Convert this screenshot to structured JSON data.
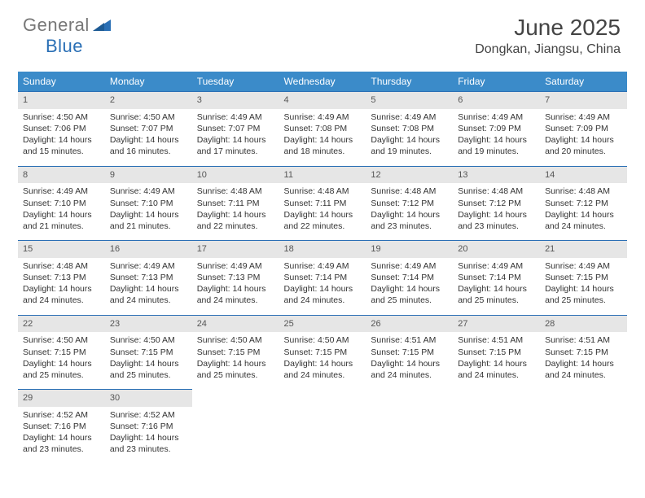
{
  "logo": {
    "word1": "General",
    "word2": "Blue"
  },
  "title": "June 2025",
  "location": "Dongkan, Jiangsu, China",
  "colors": {
    "header_bg": "#3b8bc9",
    "header_text": "#ffffff",
    "daynum_bg": "#e6e6e6",
    "row_border": "#2a6fb5",
    "body_text": "#333333",
    "title_text": "#444444",
    "logo_gray": "#777777",
    "logo_blue": "#2a6fb5"
  },
  "weekdays": [
    "Sunday",
    "Monday",
    "Tuesday",
    "Wednesday",
    "Thursday",
    "Friday",
    "Saturday"
  ],
  "weeks": [
    [
      {
        "n": "1",
        "sr": "4:50 AM",
        "ss": "7:06 PM",
        "dl": "14 hours and 15 minutes."
      },
      {
        "n": "2",
        "sr": "4:50 AM",
        "ss": "7:07 PM",
        "dl": "14 hours and 16 minutes."
      },
      {
        "n": "3",
        "sr": "4:49 AM",
        "ss": "7:07 PM",
        "dl": "14 hours and 17 minutes."
      },
      {
        "n": "4",
        "sr": "4:49 AM",
        "ss": "7:08 PM",
        "dl": "14 hours and 18 minutes."
      },
      {
        "n": "5",
        "sr": "4:49 AM",
        "ss": "7:08 PM",
        "dl": "14 hours and 19 minutes."
      },
      {
        "n": "6",
        "sr": "4:49 AM",
        "ss": "7:09 PM",
        "dl": "14 hours and 19 minutes."
      },
      {
        "n": "7",
        "sr": "4:49 AM",
        "ss": "7:09 PM",
        "dl": "14 hours and 20 minutes."
      }
    ],
    [
      {
        "n": "8",
        "sr": "4:49 AM",
        "ss": "7:10 PM",
        "dl": "14 hours and 21 minutes."
      },
      {
        "n": "9",
        "sr": "4:49 AM",
        "ss": "7:10 PM",
        "dl": "14 hours and 21 minutes."
      },
      {
        "n": "10",
        "sr": "4:48 AM",
        "ss": "7:11 PM",
        "dl": "14 hours and 22 minutes."
      },
      {
        "n": "11",
        "sr": "4:48 AM",
        "ss": "7:11 PM",
        "dl": "14 hours and 22 minutes."
      },
      {
        "n": "12",
        "sr": "4:48 AM",
        "ss": "7:12 PM",
        "dl": "14 hours and 23 minutes."
      },
      {
        "n": "13",
        "sr": "4:48 AM",
        "ss": "7:12 PM",
        "dl": "14 hours and 23 minutes."
      },
      {
        "n": "14",
        "sr": "4:48 AM",
        "ss": "7:12 PM",
        "dl": "14 hours and 24 minutes."
      }
    ],
    [
      {
        "n": "15",
        "sr": "4:48 AM",
        "ss": "7:13 PM",
        "dl": "14 hours and 24 minutes."
      },
      {
        "n": "16",
        "sr": "4:49 AM",
        "ss": "7:13 PM",
        "dl": "14 hours and 24 minutes."
      },
      {
        "n": "17",
        "sr": "4:49 AM",
        "ss": "7:13 PM",
        "dl": "14 hours and 24 minutes."
      },
      {
        "n": "18",
        "sr": "4:49 AM",
        "ss": "7:14 PM",
        "dl": "14 hours and 24 minutes."
      },
      {
        "n": "19",
        "sr": "4:49 AM",
        "ss": "7:14 PM",
        "dl": "14 hours and 25 minutes."
      },
      {
        "n": "20",
        "sr": "4:49 AM",
        "ss": "7:14 PM",
        "dl": "14 hours and 25 minutes."
      },
      {
        "n": "21",
        "sr": "4:49 AM",
        "ss": "7:15 PM",
        "dl": "14 hours and 25 minutes."
      }
    ],
    [
      {
        "n": "22",
        "sr": "4:50 AM",
        "ss": "7:15 PM",
        "dl": "14 hours and 25 minutes."
      },
      {
        "n": "23",
        "sr": "4:50 AM",
        "ss": "7:15 PM",
        "dl": "14 hours and 25 minutes."
      },
      {
        "n": "24",
        "sr": "4:50 AM",
        "ss": "7:15 PM",
        "dl": "14 hours and 25 minutes."
      },
      {
        "n": "25",
        "sr": "4:50 AM",
        "ss": "7:15 PM",
        "dl": "14 hours and 24 minutes."
      },
      {
        "n": "26",
        "sr": "4:51 AM",
        "ss": "7:15 PM",
        "dl": "14 hours and 24 minutes."
      },
      {
        "n": "27",
        "sr": "4:51 AM",
        "ss": "7:15 PM",
        "dl": "14 hours and 24 minutes."
      },
      {
        "n": "28",
        "sr": "4:51 AM",
        "ss": "7:15 PM",
        "dl": "14 hours and 24 minutes."
      }
    ],
    [
      {
        "n": "29",
        "sr": "4:52 AM",
        "ss": "7:16 PM",
        "dl": "14 hours and 23 minutes."
      },
      {
        "n": "30",
        "sr": "4:52 AM",
        "ss": "7:16 PM",
        "dl": "14 hours and 23 minutes."
      },
      null,
      null,
      null,
      null,
      null
    ]
  ],
  "labels": {
    "sunrise": "Sunrise: ",
    "sunset": "Sunset: ",
    "daylight": "Daylight: "
  }
}
